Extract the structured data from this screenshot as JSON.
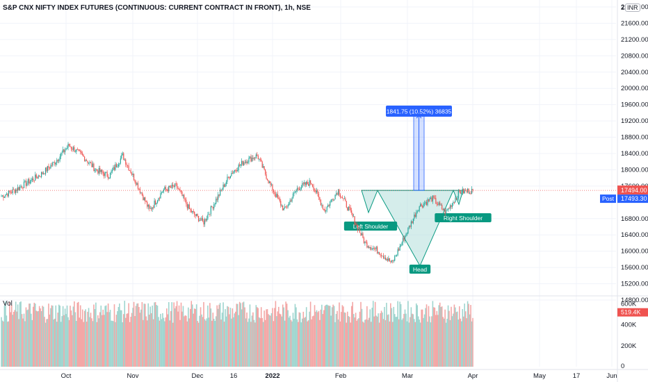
{
  "title": "S&P CNX NIFTY INDEX FUTURES (CONTINUOUS: CURRENT CONTRACT IN FRONT), 1h, NSE",
  "currency": "INR",
  "chart_data": {
    "type": "candlestick",
    "price_axis": {
      "min": 14800,
      "max": 22000,
      "ticks": [
        "22000.00",
        "21600.00",
        "21200.00",
        "20800.00",
        "20400.00",
        "20000.00",
        "19600.00",
        "19200.00",
        "18800.00",
        "18400.00",
        "18000.00",
        "17600.00",
        "16800.00",
        "16400.00",
        "16000.00",
        "15600.00",
        "15200.00",
        "14800.00"
      ],
      "top_partial_label": "22"
    },
    "time_axis": {
      "labels": [
        "Oct",
        "Nov",
        "Dec",
        "16",
        "2022",
        "Feb",
        "Mar",
        "Apr",
        "May",
        "17",
        "Jun"
      ],
      "bold_labels": [
        "2022"
      ]
    },
    "price_path": [
      {
        "t": "Sep",
        "price": 17350
      },
      {
        "t": "Sep",
        "price": 17500
      },
      {
        "t": "Sep",
        "price": 17700
      },
      {
        "t": "Oct",
        "price": 17900
      },
      {
        "t": "Oct",
        "price": 18200
      },
      {
        "t": "Oct",
        "price": 18600
      },
      {
        "t": "Oct",
        "price": 18350
      },
      {
        "t": "Nov",
        "price": 18000
      },
      {
        "t": "Nov",
        "price": 17850
      },
      {
        "t": "Nov",
        "price": 18350
      },
      {
        "t": "Nov",
        "price": 17700
      },
      {
        "t": "Dec",
        "price": 17000
      },
      {
        "t": "Dec",
        "price": 17500
      },
      {
        "t": "Dec",
        "price": 17600
      },
      {
        "t": "16",
        "price": 17000
      },
      {
        "t": "16",
        "price": 16700
      },
      {
        "t": "2022",
        "price": 17300
      },
      {
        "t": "2022",
        "price": 17900
      },
      {
        "t": "Jan",
        "price": 18200
      },
      {
        "t": "Jan",
        "price": 18350
      },
      {
        "t": "Jan",
        "price": 17600
      },
      {
        "t": "Jan",
        "price": 17000
      },
      {
        "t": "Feb",
        "price": 17550
      },
      {
        "t": "Feb",
        "price": 17700
      },
      {
        "t": "Feb",
        "price": 17000
      },
      {
        "t": "Feb",
        "price": 17500
      },
      {
        "t": "Feb",
        "price": 16900
      },
      {
        "t": "Feb",
        "price": 16200
      },
      {
        "t": "Mar",
        "price": 16000
      },
      {
        "t": "Mar",
        "price": 15700
      },
      {
        "t": "Mar",
        "price": 16400
      },
      {
        "t": "Mar",
        "price": 17100
      },
      {
        "t": "Mar",
        "price": 17300
      },
      {
        "t": "Mar",
        "price": 16950
      },
      {
        "t": "Mar",
        "price": 17450
      },
      {
        "t": "Apr",
        "price": 17494
      }
    ],
    "pattern": {
      "name": "Inverse Head and Shoulders",
      "neckline": 17494,
      "labels": [
        "Left Shoulder",
        "Head",
        "Right Shoulder"
      ]
    },
    "measurement": {
      "label": "1841.75 (10.52%) 36835",
      "from_price": 17494,
      "to_price": 19336,
      "change": 1841.75,
      "percent": 10.52,
      "bars": 36835
    },
    "last_price": {
      "value": "17494.00",
      "post_label": "Post",
      "post_value": "17493.30"
    },
    "volume": {
      "label": "Vol",
      "ticks": [
        "600K",
        "400K",
        "200K",
        "0"
      ],
      "last_value": "519.4K",
      "max": 650000
    }
  },
  "colors": {
    "up": "#26a69a",
    "down": "#ef5350",
    "vol_up": "#9fd5cf",
    "vol_down": "#f3a7a6",
    "pattern_fill": "#b2dfdb",
    "pattern_line": "#089981",
    "measure": "#2962ff",
    "last_price_bg": "#ef5350",
    "post_bg": "#2962ff"
  }
}
